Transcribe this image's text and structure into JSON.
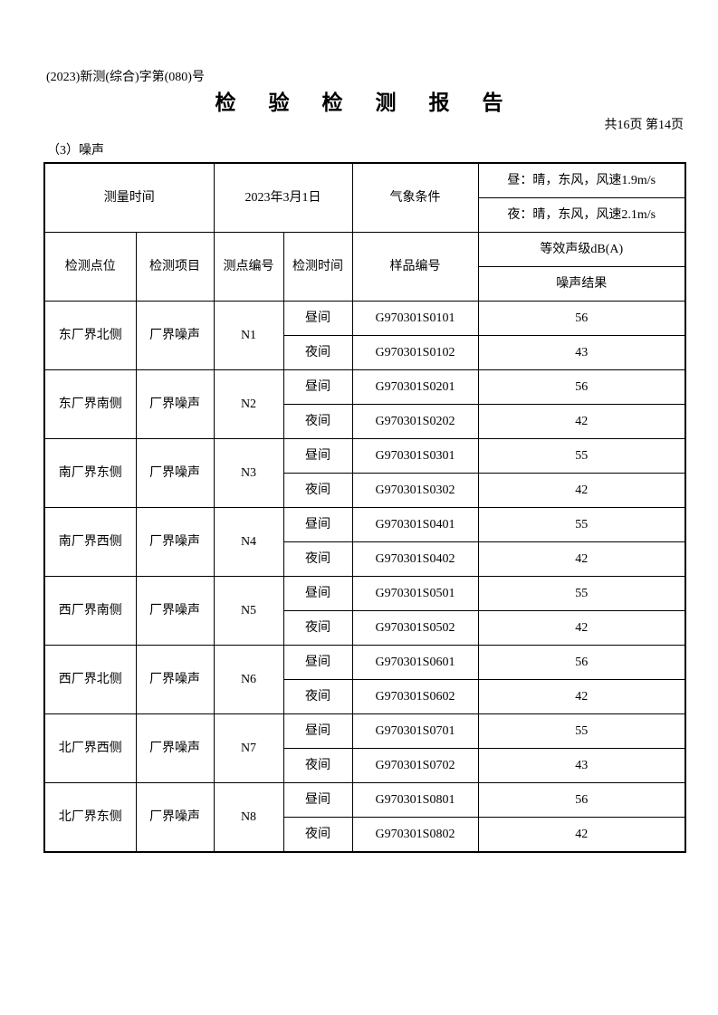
{
  "header": {
    "reference_number": "(2023)新测(综合)字第(080)号",
    "title": "检 验 检 测 报 告",
    "page_info": "共16页  第14页",
    "section": "（3）噪声"
  },
  "table": {
    "measure_time_label": "测量时间",
    "measure_date": "2023年3月1日",
    "weather_label": "气象条件",
    "weather_day": "昼：晴，东风，风速1.9m/s",
    "weather_night": "夜：晴，东风，风速2.1m/s",
    "columns": {
      "location": "检测点位",
      "item": "检测项目",
      "point_no": "测点编号",
      "period": "检测时间",
      "sample_no": "样品编号",
      "level_group": "等效声级dB(A)",
      "result": "噪声结果"
    },
    "groups": [
      {
        "location": "东厂界北侧",
        "item": "厂界噪声",
        "point": "N1",
        "rows": [
          {
            "period": "昼间",
            "sample": "G970301S0101",
            "result": "56"
          },
          {
            "period": "夜间",
            "sample": "G970301S0102",
            "result": "43"
          }
        ]
      },
      {
        "location": "东厂界南侧",
        "item": "厂界噪声",
        "point": "N2",
        "rows": [
          {
            "period": "昼间",
            "sample": "G970301S0201",
            "result": "56"
          },
          {
            "period": "夜间",
            "sample": "G970301S0202",
            "result": "42"
          }
        ]
      },
      {
        "location": "南厂界东侧",
        "item": "厂界噪声",
        "point": "N3",
        "rows": [
          {
            "period": "昼间",
            "sample": "G970301S0301",
            "result": "55"
          },
          {
            "period": "夜间",
            "sample": "G970301S0302",
            "result": "42"
          }
        ]
      },
      {
        "location": "南厂界西侧",
        "item": "厂界噪声",
        "point": "N4",
        "rows": [
          {
            "period": "昼间",
            "sample": "G970301S0401",
            "result": "55"
          },
          {
            "period": "夜间",
            "sample": "G970301S0402",
            "result": "42"
          }
        ]
      },
      {
        "location": "西厂界南侧",
        "item": "厂界噪声",
        "point": "N5",
        "rows": [
          {
            "period": "昼间",
            "sample": "G970301S0501",
            "result": "55"
          },
          {
            "period": "夜间",
            "sample": "G970301S0502",
            "result": "42"
          }
        ]
      },
      {
        "location": "西厂界北侧",
        "item": "厂界噪声",
        "point": "N6",
        "rows": [
          {
            "period": "昼间",
            "sample": "G970301S0601",
            "result": "56"
          },
          {
            "period": "夜间",
            "sample": "G970301S0602",
            "result": "42"
          }
        ]
      },
      {
        "location": "北厂界西侧",
        "item": "厂界噪声",
        "point": "N7",
        "rows": [
          {
            "period": "昼间",
            "sample": "G970301S0701",
            "result": "55"
          },
          {
            "period": "夜间",
            "sample": "G970301S0702",
            "result": "43"
          }
        ]
      },
      {
        "location": "北厂界东侧",
        "item": "厂界噪声",
        "point": "N8",
        "rows": [
          {
            "period": "昼间",
            "sample": "G970301S0801",
            "result": "56"
          },
          {
            "period": "夜间",
            "sample": "G970301S0802",
            "result": "42"
          }
        ]
      }
    ]
  }
}
